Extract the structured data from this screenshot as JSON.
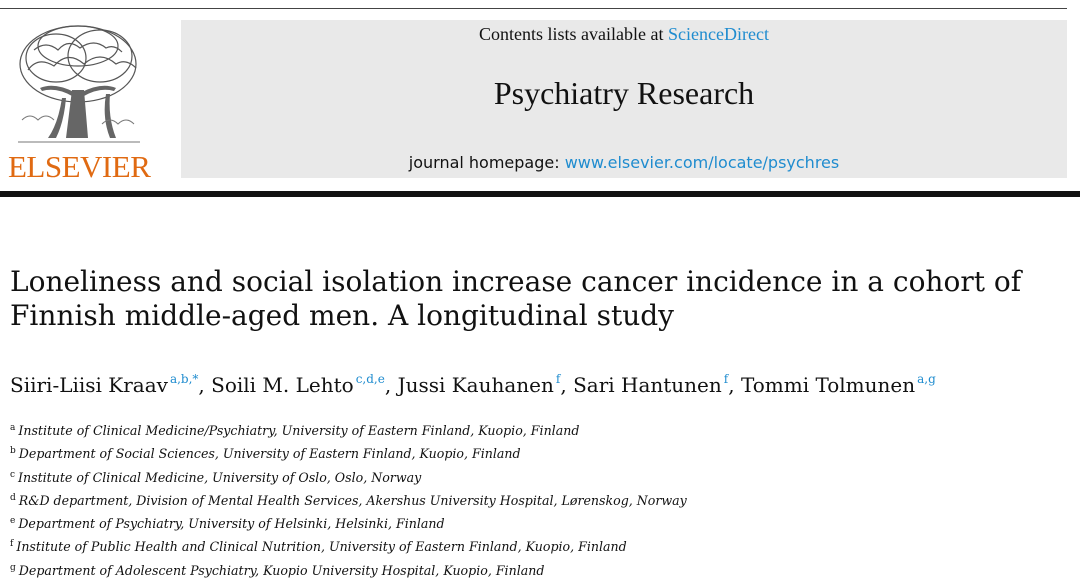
{
  "publisher": {
    "logo_icon": "elsevier-tree-icon",
    "name": "ELSEVIER",
    "brand_color": "#e06a12"
  },
  "banner": {
    "contents_prefix": "Contents lists available at ",
    "contents_link": "ScienceDirect",
    "journal_title": "Psychiatry Research",
    "homepage_label": "journal homepage: ",
    "homepage_url": "www.elsevier.com/locate/psychres",
    "link_color": "#1f8ccf",
    "background": "#e9e9e9"
  },
  "article": {
    "title_line1": "Loneliness and social isolation increase cancer incidence in a cohort of",
    "title_line2": "Finnish middle-aged men. A longitudinal study",
    "authors": [
      {
        "name": "Siiri-Liisi Kraav",
        "marks": "a,b,*",
        "sep": ", "
      },
      {
        "name": "Soili M. Lehto",
        "marks": "c,d,e",
        "sep": ", "
      },
      {
        "name": "Jussi Kauhanen",
        "marks": "f",
        "sep": ", "
      },
      {
        "name": "Sari Hantunen",
        "marks": "f",
        "sep": ", "
      },
      {
        "name": "Tommi Tolmunen",
        "marks": "a,g",
        "sep": ""
      }
    ],
    "affiliations": [
      {
        "mark": "a",
        "text": "Institute of Clinical Medicine/Psychiatry, University of Eastern Finland, Kuopio, Finland"
      },
      {
        "mark": "b",
        "text": "Department of Social Sciences, University of Eastern Finland, Kuopio, Finland"
      },
      {
        "mark": "c",
        "text": "Institute of Clinical Medicine, University of Oslo, Oslo, Norway"
      },
      {
        "mark": "d",
        "text": "R&D department, Division of Mental Health Services, Akershus University Hospital, Lørenskog, Norway"
      },
      {
        "mark": "e",
        "text": "Department of Psychiatry, University of Helsinki, Helsinki, Finland"
      },
      {
        "mark": "f",
        "text": "Institute of Public Health and Clinical Nutrition, University of Eastern Finland, Kuopio, Finland"
      },
      {
        "mark": "g",
        "text": "Department of Adolescent Psychiatry, Kuopio University Hospital, Kuopio, Finland"
      }
    ]
  }
}
